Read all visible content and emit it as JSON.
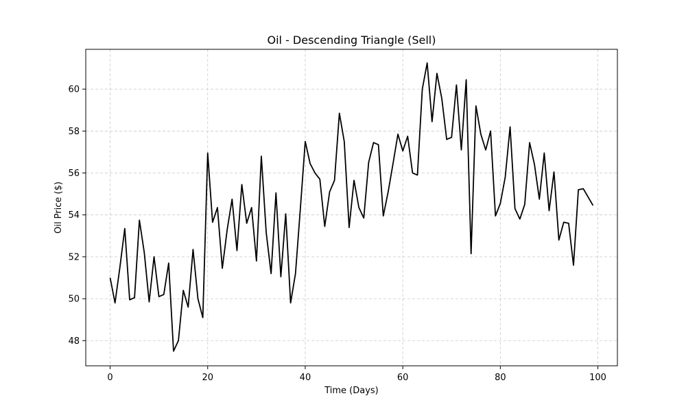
{
  "chart_data": {
    "type": "line",
    "title": "Oil - Descending Triangle (Sell)",
    "xlabel": "Time (Days)",
    "ylabel": "Oil Price ($)",
    "xlim": [
      -5,
      104
    ],
    "ylim": [
      46.8,
      61.9
    ],
    "x_ticks": [
      0,
      20,
      40,
      60,
      80,
      100
    ],
    "y_ticks": [
      48,
      50,
      52,
      54,
      56,
      58,
      60
    ],
    "grid": true,
    "grid_style": "dashed",
    "colors": {
      "line": "#000000",
      "grid": "#c8c8c8",
      "frame": "#000000"
    },
    "series": [
      {
        "x": [
          0,
          1,
          2,
          3,
          4,
          5,
          6,
          7,
          8,
          9,
          10,
          11,
          12,
          13,
          14,
          15,
          16,
          17,
          18,
          19,
          20,
          21,
          22,
          23,
          24,
          25,
          26,
          27,
          28,
          29,
          30,
          31,
          32,
          33,
          34,
          35,
          36,
          37,
          38,
          39,
          40,
          41,
          42,
          43,
          44,
          45,
          46,
          47,
          48,
          49,
          50,
          51,
          52,
          53,
          54,
          55,
          56,
          57,
          58,
          59,
          60,
          61,
          62,
          63,
          64,
          65,
          66,
          67,
          68,
          69,
          70,
          71,
          72,
          73,
          74,
          75,
          76,
          77,
          78,
          79,
          80,
          81,
          82,
          83,
          84,
          85,
          86,
          87,
          88,
          89,
          90,
          91,
          92,
          93,
          94,
          95,
          96,
          97,
          98,
          99
        ],
        "values": [
          51.0,
          49.8,
          51.5,
          53.35,
          49.95,
          50.05,
          53.75,
          52.2,
          49.85,
          52.0,
          50.1,
          50.2,
          51.7,
          47.5,
          48.0,
          50.4,
          49.6,
          52.35,
          50.0,
          49.1,
          56.95,
          53.65,
          54.35,
          51.45,
          53.3,
          54.75,
          52.3,
          55.45,
          53.6,
          54.35,
          51.8,
          56.8,
          53.15,
          51.2,
          55.05,
          51.05,
          54.05,
          49.8,
          51.2,
          54.3,
          57.5,
          56.45,
          56.0,
          55.7,
          53.45,
          55.1,
          55.65,
          58.85,
          57.5,
          53.4,
          55.65,
          54.35,
          53.85,
          56.5,
          57.45,
          57.35,
          53.95,
          55.1,
          56.45,
          57.85,
          57.05,
          57.75,
          56.0,
          55.9,
          60.0,
          61.25,
          58.45,
          60.75,
          59.55,
          57.6,
          57.7,
          60.2,
          57.1,
          60.45,
          52.15,
          59.2,
          57.85,
          57.1,
          58.0,
          53.95,
          54.55,
          55.8,
          58.2,
          54.3,
          53.8,
          54.5,
          57.45,
          56.4,
          54.75,
          56.95,
          54.2,
          56.05,
          52.8,
          53.65,
          53.6,
          51.6,
          55.2,
          55.25,
          54.85,
          54.45
        ]
      }
    ]
  }
}
